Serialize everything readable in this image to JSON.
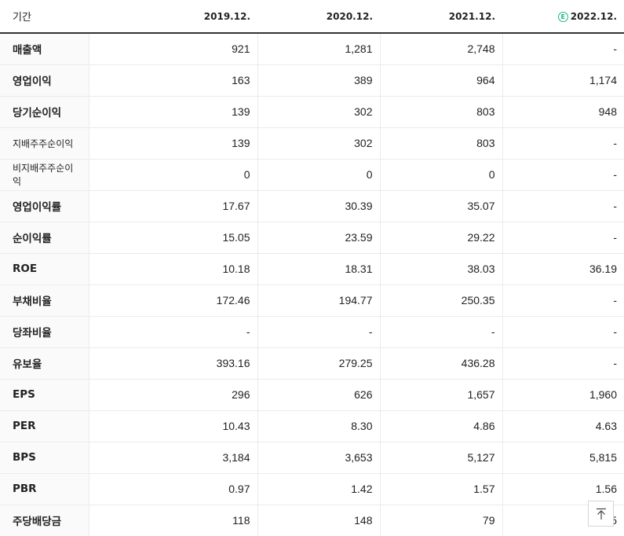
{
  "header": {
    "period_label": "기간",
    "columns": [
      {
        "label": "2019.12.",
        "estimate": false
      },
      {
        "label": "2020.12.",
        "estimate": false
      },
      {
        "label": "2021.12.",
        "estimate": false
      },
      {
        "label": "2022.12.",
        "estimate": true,
        "badge": "E"
      }
    ]
  },
  "rows": [
    {
      "label": "매출액",
      "small": false,
      "group_start": false,
      "values": [
        "921",
        "1,281",
        "2,748",
        "-"
      ]
    },
    {
      "label": "영업이익",
      "small": false,
      "group_start": false,
      "values": [
        "163",
        "389",
        "964",
        "1,174"
      ]
    },
    {
      "label": "당기순이익",
      "small": false,
      "group_start": false,
      "values": [
        "139",
        "302",
        "803",
        "948"
      ]
    },
    {
      "label": "지배주주순이익",
      "small": true,
      "group_start": false,
      "values": [
        "139",
        "302",
        "803",
        "-"
      ]
    },
    {
      "label": "비지배주주순이익",
      "small": true,
      "group_start": false,
      "values": [
        "0",
        "0",
        "0",
        "-"
      ]
    },
    {
      "label": "영업이익률",
      "small": false,
      "group_start": true,
      "values": [
        "17.67",
        "30.39",
        "35.07",
        "-"
      ]
    },
    {
      "label": "순이익률",
      "small": false,
      "group_start": false,
      "values": [
        "15.05",
        "23.59",
        "29.22",
        "-"
      ]
    },
    {
      "label": "ROE",
      "small": false,
      "group_start": false,
      "values": [
        "10.18",
        "18.31",
        "38.03",
        "36.19"
      ]
    },
    {
      "label": "부채비율",
      "small": false,
      "group_start": true,
      "values": [
        "172.46",
        "194.77",
        "250.35",
        "-"
      ]
    },
    {
      "label": "당좌비율",
      "small": false,
      "group_start": false,
      "values": [
        "-",
        "-",
        "-",
        "-"
      ]
    },
    {
      "label": "유보율",
      "small": false,
      "group_start": false,
      "values": [
        "393.16",
        "279.25",
        "436.28",
        "-"
      ]
    },
    {
      "label": "EPS",
      "small": false,
      "group_start": true,
      "values": [
        "296",
        "626",
        "1,657",
        "1,960"
      ]
    },
    {
      "label": "PER",
      "small": false,
      "group_start": false,
      "values": [
        "10.43",
        "8.30",
        "4.86",
        "4.63"
      ]
    },
    {
      "label": "BPS",
      "small": false,
      "group_start": false,
      "values": [
        "3,184",
        "3,653",
        "5,127",
        "5,815"
      ]
    },
    {
      "label": "PBR",
      "small": false,
      "group_start": false,
      "values": [
        "0.97",
        "1.42",
        "1.57",
        "1.56"
      ]
    },
    {
      "label": "주당배당금",
      "small": false,
      "group_start": true,
      "values": [
        "118",
        "148",
        "79",
        "5"
      ]
    }
  ],
  "scroll_top_icon": "arrow-up-to-top-icon"
}
